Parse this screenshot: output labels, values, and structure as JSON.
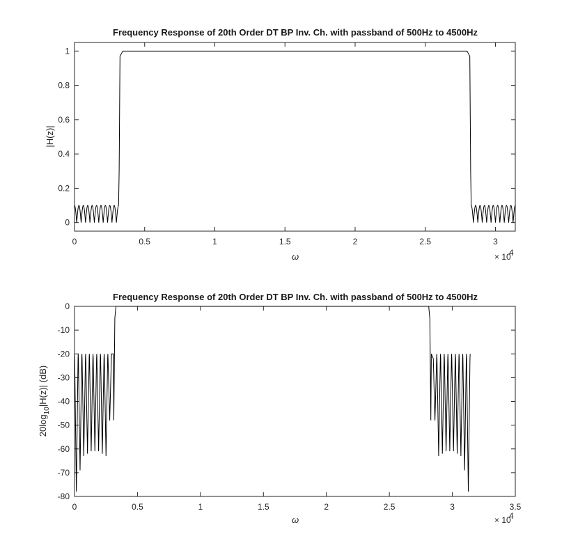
{
  "figure": {
    "background": "#ffffff",
    "line_color": "#000000",
    "axis_color": "#262626"
  },
  "chart_data": [
    {
      "type": "line",
      "title": "Frequency Response of 20th Order DT BP Inv. Ch. with passband of 500Hz to 4500Hz",
      "xlabel": "ω",
      "ylabel": "|H(z)|",
      "xlim": [
        0,
        31416
      ],
      "ylim": [
        -0.05,
        1.05
      ],
      "x_exponent_label": "× 10",
      "x_exponent_power": "4",
      "xticks": [
        0,
        5000,
        10000,
        15000,
        20000,
        25000,
        30000
      ],
      "xtick_labels": [
        "0",
        "0.5",
        "1",
        "1.5",
        "2",
        "2.5",
        "3"
      ],
      "yticks": [
        0,
        0.2,
        0.4,
        0.6,
        0.8,
        1
      ],
      "ytick_labels": [
        "0",
        "0.2",
        "0.4",
        "0.6",
        "0.8",
        "1"
      ],
      "grid": false,
      "series": [
        {
          "passband": [
            3142,
            28274
          ],
          "stopband_peak": 0.1,
          "stopband_ripples_per_side": 10,
          "passband_value": 1.0
        }
      ]
    },
    {
      "type": "line",
      "title": "Frequency Response of 20th Order DT BP Inv. Ch. with passband of 500Hz to 4500Hz",
      "xlabel": "ω",
      "ylabel_main": "20log",
      "ylabel_sub": "10",
      "ylabel_rest": "|H(z)| (dB)",
      "xlim": [
        0,
        35000
      ],
      "ylim": [
        -80,
        0
      ],
      "x_exponent_label": "× 10",
      "x_exponent_power": "4",
      "xticks": [
        0,
        5000,
        10000,
        15000,
        20000,
        25000,
        30000,
        35000
      ],
      "xtick_labels": [
        "0",
        "0.5",
        "1",
        "1.5",
        "2",
        "2.5",
        "3",
        "3.5"
      ],
      "yticks": [
        0,
        -10,
        -20,
        -30,
        -40,
        -50,
        -60,
        -70,
        -80
      ],
      "ytick_labels": [
        "0",
        "-10",
        "-20",
        "-30",
        "-40",
        "-50",
        "-60",
        "-70",
        "-80"
      ],
      "grid": false,
      "series": [
        {
          "x_end": 31416,
          "passband": [
            3142,
            28274
          ],
          "stopband_peak_db": -20,
          "null_depths_left_db": [
            -78,
            -69,
            -63,
            -62,
            -61,
            -61,
            -61,
            -62,
            -63,
            -48
          ],
          "null_depths_right_db": [
            -48,
            -63,
            -62,
            -61,
            -61,
            -61,
            -62,
            -63,
            -69,
            -78
          ]
        }
      ]
    }
  ]
}
